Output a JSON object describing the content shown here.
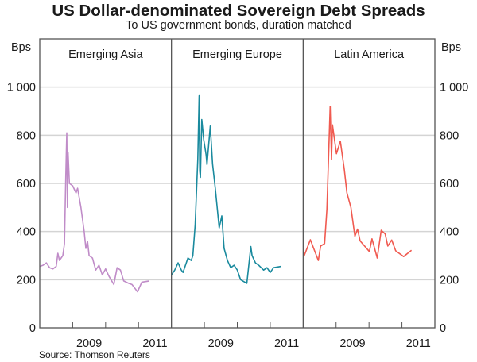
{
  "chart_data": {
    "type": "line",
    "title": "US Dollar-denominated Sovereign Debt Spreads",
    "subtitle": "To US government bonds, duration matched",
    "source": "Source: Thomson Reuters",
    "ylabel_left": "Bps",
    "ylabel_right": "Bps",
    "ylim": [
      0,
      1200
    ],
    "yticks": [
      0,
      200,
      400,
      600,
      800,
      1000
    ],
    "ytick_labels": [
      "0",
      "200",
      "400",
      "600",
      "800",
      "1 000"
    ],
    "xlim": [
      2008.0,
      2012.0
    ],
    "xticks": [
      2009,
      2010,
      2011
    ],
    "xtick_labels": [
      {
        "label": "2009",
        "at": 2009.5
      },
      {
        "label": "2011",
        "at": 2011.5
      }
    ],
    "grid": true,
    "panels": [
      {
        "name": "Emerging Asia",
        "color": "#c08cc8",
        "x": [
          2008.0,
          2008.1,
          2008.2,
          2008.3,
          2008.4,
          2008.5,
          2008.55,
          2008.6,
          2008.7,
          2008.75,
          2008.79,
          2008.82,
          2008.84,
          2008.86,
          2008.9,
          2009.0,
          2009.1,
          2009.15,
          2009.25,
          2009.35,
          2009.4,
          2009.45,
          2009.5,
          2009.6,
          2009.7,
          2009.8,
          2009.9,
          2010.0,
          2010.1,
          2010.25,
          2010.35,
          2010.45,
          2010.55,
          2010.7,
          2010.8,
          2010.97,
          2011.1,
          2011.33
        ],
        "y": [
          255,
          260,
          270,
          250,
          245,
          255,
          310,
          280,
          300,
          350,
          620,
          810,
          500,
          730,
          600,
          590,
          560,
          580,
          500,
          400,
          330,
          360,
          300,
          290,
          240,
          260,
          220,
          245,
          215,
          180,
          250,
          240,
          195,
          185,
          180,
          150,
          190,
          195
        ]
      },
      {
        "name": "Emerging Europe",
        "color": "#1a8a9e",
        "x": [
          2008.0,
          2008.1,
          2008.2,
          2008.3,
          2008.35,
          2008.5,
          2008.6,
          2008.65,
          2008.72,
          2008.8,
          2008.84,
          2008.86,
          2008.88,
          2008.92,
          2008.98,
          2009.05,
          2009.08,
          2009.18,
          2009.25,
          2009.33,
          2009.45,
          2009.53,
          2009.6,
          2009.7,
          2009.8,
          2009.9,
          2010.0,
          2010.1,
          2010.29,
          2010.41,
          2010.45,
          2010.55,
          2010.65,
          2010.8,
          2010.9,
          2011.0,
          2011.1,
          2011.33
        ],
        "y": [
          220,
          240,
          270,
          240,
          230,
          290,
          280,
          300,
          428,
          700,
          964,
          650,
          625,
          865,
          780,
          720,
          678,
          838,
          680,
          580,
          415,
          465,
          330,
          280,
          250,
          260,
          240,
          200,
          185,
          338,
          300,
          270,
          260,
          240,
          250,
          230,
          250,
          255
        ]
      },
      {
        "name": "Latin America",
        "color": "#f05a50",
        "x": [
          2008.02,
          2008.22,
          2008.46,
          2008.53,
          2008.65,
          2008.72,
          2008.77,
          2008.82,
          2008.86,
          2008.89,
          2009.01,
          2009.13,
          2009.25,
          2009.33,
          2009.45,
          2009.57,
          2009.65,
          2009.73,
          2010.01,
          2010.09,
          2010.25,
          2010.37,
          2010.49,
          2010.57,
          2010.69,
          2010.81,
          2011.05,
          2011.29
        ],
        "y": [
          296,
          366,
          280,
          340,
          350,
          493,
          700,
          920,
          700,
          843,
          723,
          775,
          657,
          560,
          500,
          380,
          410,
          361,
          317,
          370,
          290,
          405,
          390,
          340,
          365,
          320,
          296,
          322
        ]
      }
    ]
  }
}
